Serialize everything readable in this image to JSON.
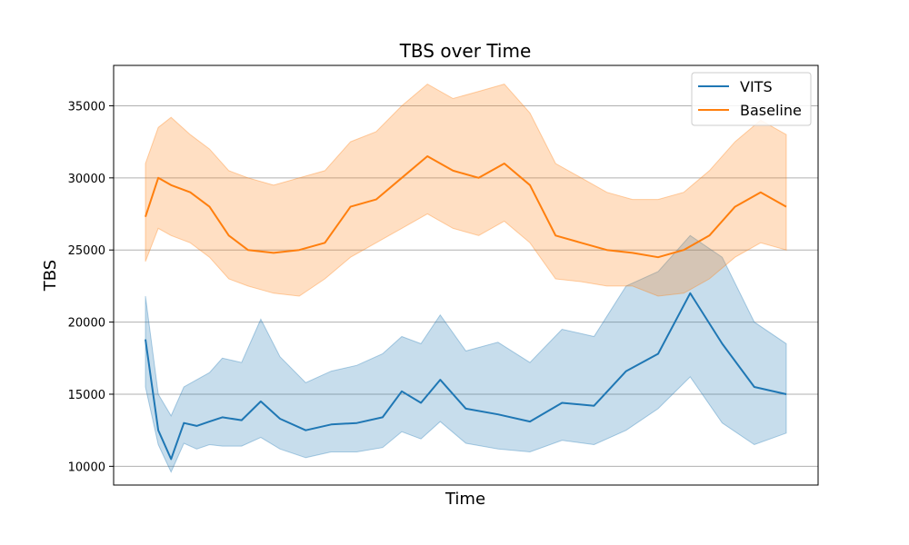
{
  "chart_data": {
    "type": "line",
    "title": "TBS over Time",
    "xlabel": "Time",
    "ylabel": "TBS",
    "ylim": [
      8700,
      37800
    ],
    "yticks": [
      10000,
      15000,
      20000,
      25000,
      30000,
      35000
    ],
    "ytick_labels": [
      "10000",
      "15000",
      "20000",
      "25000",
      "30000",
      "35000"
    ],
    "grid": "horizontal",
    "legend_position": "top-right",
    "x_tick_labels": [],
    "series": [
      {
        "name": "VITS",
        "color": "#1f77b4",
        "x": [
          0,
          2,
          4,
          6,
          8,
          10,
          12,
          15,
          18,
          21,
          25,
          29,
          33,
          37,
          40,
          43,
          46,
          50,
          55,
          60,
          65,
          70,
          75,
          80,
          85,
          90,
          95,
          100
        ],
        "values": [
          18800,
          12500,
          10500,
          13000,
          12800,
          13100,
          13400,
          13200,
          14500,
          13300,
          12500,
          12900,
          13000,
          13400,
          15200,
          14400,
          16000,
          14000,
          13600,
          13100,
          14400,
          14200,
          16600,
          17800,
          22000,
          18500,
          15500,
          15000
        ],
        "band_lower": [
          15500,
          11500,
          9600,
          11600,
          11200,
          11500,
          11400,
          11400,
          12000,
          11200,
          10600,
          11000,
          11000,
          11300,
          12400,
          11900,
          13100,
          11600,
          11200,
          11000,
          11800,
          11500,
          12500,
          14000,
          16200,
          13000,
          11500,
          12300
        ],
        "band_upper": [
          21800,
          15000,
          13500,
          15500,
          16000,
          16500,
          17500,
          17200,
          20200,
          17600,
          15800,
          16600,
          17000,
          17800,
          19000,
          18500,
          20500,
          18000,
          18600,
          17200,
          19500,
          19000,
          22500,
          23500,
          26000,
          24500,
          20000,
          18500
        ]
      },
      {
        "name": "Baseline",
        "color": "#ff7f0e",
        "x": [
          0,
          2,
          4,
          7,
          10,
          13,
          16,
          20,
          24,
          28,
          32,
          36,
          40,
          44,
          48,
          52,
          56,
          60,
          64,
          68,
          72,
          76,
          80,
          84,
          88,
          92,
          96,
          100
        ],
        "values": [
          27300,
          30000,
          29500,
          29000,
          28000,
          26000,
          25000,
          24800,
          25000,
          25500,
          28000,
          28500,
          30000,
          31500,
          30500,
          30000,
          31000,
          29500,
          26000,
          25500,
          25000,
          24800,
          24500,
          25000,
          26000,
          28000,
          29000,
          28000
        ],
        "band_lower": [
          24200,
          26500,
          26000,
          25500,
          24500,
          23000,
          22500,
          22000,
          21800,
          23000,
          24500,
          25500,
          26500,
          27500,
          26500,
          26000,
          27000,
          25500,
          23000,
          22800,
          22500,
          22500,
          21800,
          22000,
          23000,
          24500,
          25500,
          25000
        ],
        "band_upper": [
          31000,
          33500,
          34200,
          33000,
          32000,
          30500,
          30000,
          29500,
          30000,
          30500,
          32500,
          33200,
          35000,
          36500,
          35500,
          36000,
          36500,
          34500,
          31000,
          30000,
          29000,
          28500,
          28500,
          29000,
          30500,
          32500,
          34000,
          33000
        ]
      }
    ]
  }
}
